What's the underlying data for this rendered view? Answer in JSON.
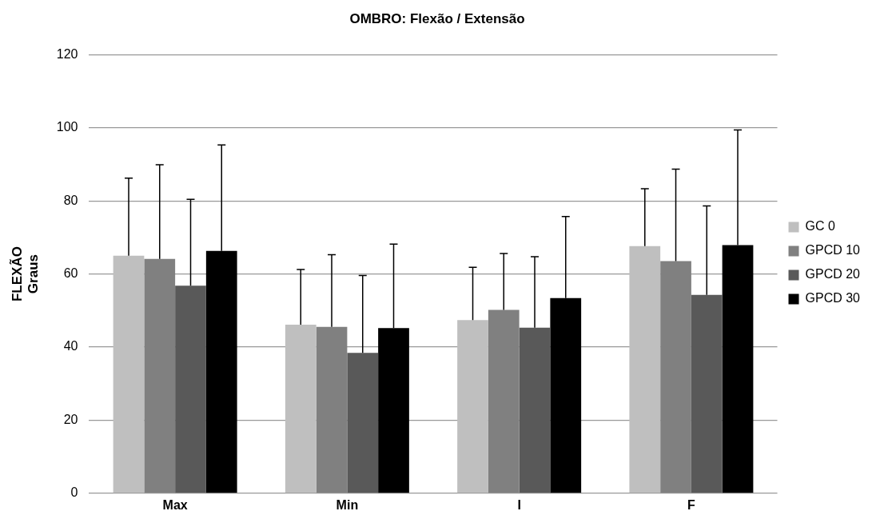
{
  "chart_data": {
    "type": "bar",
    "title": "OMBRO: Flexão / Extensão",
    "ylabel": "FLEXÃO\nGraus",
    "categories": [
      "Max",
      "Min",
      "I",
      "F"
    ],
    "series": [
      {
        "name": "GC 0",
        "color": "#bfbfbf",
        "values": [
          65.0,
          46.1,
          47.4,
          67.6
        ],
        "errors": [
          [
            65.0,
            86.2
          ],
          [
            46.1,
            61.2
          ],
          [
            47.4,
            61.8
          ],
          [
            67.6,
            83.3
          ]
        ]
      },
      {
        "name": "GPCD 10",
        "color": "#808080",
        "values": [
          64.1,
          45.5,
          50.2,
          63.5
        ],
        "errors": [
          [
            64.1,
            89.9
          ],
          [
            45.5,
            65.3
          ],
          [
            50.2,
            65.6
          ],
          [
            63.5,
            88.7
          ]
        ]
      },
      {
        "name": "GPCD 20",
        "color": "#595959",
        "values": [
          56.8,
          38.4,
          45.3,
          54.3
        ],
        "errors": [
          [
            56.8,
            80.4
          ],
          [
            38.4,
            59.6
          ],
          [
            45.3,
            64.7
          ],
          [
            54.3,
            78.6
          ]
        ]
      },
      {
        "name": "GPCD 30",
        "color": "#000000",
        "values": [
          66.3,
          45.2,
          53.4,
          67.9
        ],
        "errors": [
          [
            66.3,
            95.3
          ],
          [
            45.2,
            68.2
          ],
          [
            53.4,
            75.7
          ],
          [
            67.9,
            99.4
          ]
        ]
      }
    ],
    "ylim": [
      0,
      120
    ],
    "yticks": [
      0,
      20,
      40,
      60,
      80,
      100,
      120
    ],
    "grid": "y",
    "legend": "right"
  }
}
